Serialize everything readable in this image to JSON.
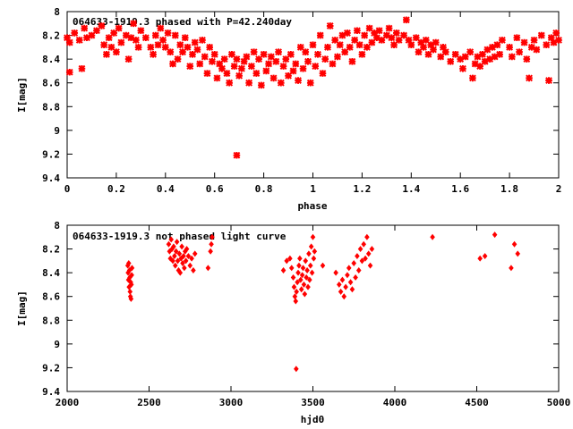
{
  "chart_data": [
    {
      "type": "scatter",
      "title": "064633-1919.3 phased with P=42.240day",
      "xlabel": "phase",
      "ylabel": "I[mag]",
      "xlim": [
        0,
        2
      ],
      "ylim": [
        9.4,
        8
      ],
      "y_inverted": true,
      "x_ticks": [
        0,
        0.2,
        0.4,
        0.6,
        0.8,
        1,
        1.2,
        1.4,
        1.6,
        1.8,
        2
      ],
      "y_ticks": [
        8,
        8.2,
        8.4,
        8.6,
        8.8,
        9,
        9.2,
        9.4
      ],
      "x_tick_labels": [
        "0",
        "0.2",
        "0.4",
        "0.6",
        "0.8",
        "1",
        "1.2",
        "1.4",
        "1.6",
        "1.8",
        "2"
      ],
      "y_tick_labels": [
        "8",
        "8.2",
        "8.4",
        "8.6",
        "8.8",
        "9",
        "9.2",
        "9.4"
      ],
      "marker_color": "#ff0000",
      "points": [
        [
          0.0,
          8.22
        ],
        [
          0.01,
          8.26
        ],
        [
          0.01,
          8.51
        ],
        [
          0.03,
          8.18
        ],
        [
          0.05,
          8.24
        ],
        [
          0.06,
          8.48
        ],
        [
          0.07,
          8.14
        ],
        [
          0.08,
          8.22
        ],
        [
          0.1,
          8.2
        ],
        [
          0.12,
          8.16
        ],
        [
          0.14,
          8.12
        ],
        [
          0.15,
          8.28
        ],
        [
          0.16,
          8.36
        ],
        [
          0.17,
          8.22
        ],
        [
          0.18,
          8.3
        ],
        [
          0.19,
          8.18
        ],
        [
          0.2,
          8.34
        ],
        [
          0.21,
          8.14
        ],
        [
          0.22,
          8.26
        ],
        [
          0.24,
          8.2
        ],
        [
          0.25,
          8.4
        ],
        [
          0.26,
          8.22
        ],
        [
          0.27,
          8.1
        ],
        [
          0.28,
          8.24
        ],
        [
          0.29,
          8.3
        ],
        [
          0.3,
          8.16
        ],
        [
          0.32,
          8.22
        ],
        [
          0.34,
          8.3
        ],
        [
          0.35,
          8.36
        ],
        [
          0.36,
          8.2
        ],
        [
          0.37,
          8.28
        ],
        [
          0.38,
          8.14
        ],
        [
          0.39,
          8.24
        ],
        [
          0.4,
          8.3
        ],
        [
          0.41,
          8.18
        ],
        [
          0.42,
          8.34
        ],
        [
          0.43,
          8.44
        ],
        [
          0.44,
          8.2
        ],
        [
          0.45,
          8.4
        ],
        [
          0.46,
          8.28
        ],
        [
          0.47,
          8.34
        ],
        [
          0.48,
          8.22
        ],
        [
          0.49,
          8.3
        ],
        [
          0.5,
          8.46
        ],
        [
          0.51,
          8.36
        ],
        [
          0.52,
          8.26
        ],
        [
          0.53,
          8.32
        ],
        [
          0.54,
          8.44
        ],
        [
          0.55,
          8.24
        ],
        [
          0.56,
          8.38
        ],
        [
          0.57,
          8.52
        ],
        [
          0.58,
          8.3
        ],
        [
          0.59,
          8.42
        ],
        [
          0.6,
          8.36
        ],
        [
          0.61,
          8.56
        ],
        [
          0.62,
          8.44
        ],
        [
          0.63,
          8.48
        ],
        [
          0.64,
          8.4
        ],
        [
          0.65,
          8.52
        ],
        [
          0.66,
          8.6
        ],
        [
          0.67,
          8.36
        ],
        [
          0.68,
          8.46
        ],
        [
          0.69,
          8.4
        ],
        [
          0.69,
          9.21
        ],
        [
          0.7,
          8.54
        ],
        [
          0.71,
          8.48
        ],
        [
          0.72,
          8.42
        ],
        [
          0.73,
          8.38
        ],
        [
          0.74,
          8.6
        ],
        [
          0.75,
          8.46
        ],
        [
          0.76,
          8.34
        ],
        [
          0.77,
          8.52
        ],
        [
          0.78,
          8.4
        ],
        [
          0.79,
          8.62
        ],
        [
          0.8,
          8.36
        ],
        [
          0.81,
          8.5
        ],
        [
          0.82,
          8.44
        ],
        [
          0.83,
          8.38
        ],
        [
          0.84,
          8.56
        ],
        [
          0.85,
          8.42
        ],
        [
          0.86,
          8.34
        ],
        [
          0.87,
          8.6
        ],
        [
          0.88,
          8.46
        ],
        [
          0.89,
          8.4
        ],
        [
          0.9,
          8.54
        ],
        [
          0.91,
          8.36
        ],
        [
          0.92,
          8.5
        ],
        [
          0.93,
          8.44
        ],
        [
          0.94,
          8.58
        ],
        [
          0.95,
          8.3
        ],
        [
          0.96,
          8.48
        ],
        [
          0.97,
          8.34
        ],
        [
          0.98,
          8.42
        ],
        [
          0.99,
          8.6
        ],
        [
          1.0,
          8.28
        ],
        [
          1.01,
          8.46
        ],
        [
          1.02,
          8.36
        ],
        [
          1.03,
          8.2
        ],
        [
          1.04,
          8.52
        ],
        [
          1.05,
          8.4
        ],
        [
          1.06,
          8.3
        ],
        [
          1.07,
          8.12
        ],
        [
          1.08,
          8.44
        ],
        [
          1.09,
          8.24
        ],
        [
          1.1,
          8.38
        ],
        [
          1.11,
          8.28
        ],
        [
          1.12,
          8.2
        ],
        [
          1.13,
          8.34
        ],
        [
          1.14,
          8.18
        ],
        [
          1.15,
          8.3
        ],
        [
          1.16,
          8.42
        ],
        [
          1.17,
          8.24
        ],
        [
          1.18,
          8.16
        ],
        [
          1.19,
          8.28
        ],
        [
          1.2,
          8.36
        ],
        [
          1.21,
          8.2
        ],
        [
          1.22,
          8.3
        ],
        [
          1.23,
          8.14
        ],
        [
          1.24,
          8.26
        ],
        [
          1.25,
          8.18
        ],
        [
          1.26,
          8.22
        ],
        [
          1.27,
          8.16
        ],
        [
          1.28,
          8.24
        ],
        [
          1.3,
          8.2
        ],
        [
          1.31,
          8.14
        ],
        [
          1.32,
          8.22
        ],
        [
          1.33,
          8.28
        ],
        [
          1.34,
          8.18
        ],
        [
          1.35,
          8.24
        ],
        [
          1.37,
          8.2
        ],
        [
          1.38,
          8.07
        ],
        [
          1.39,
          8.24
        ],
        [
          1.4,
          8.28
        ],
        [
          1.42,
          8.22
        ],
        [
          1.43,
          8.34
        ],
        [
          1.44,
          8.26
        ],
        [
          1.45,
          8.3
        ],
        [
          1.46,
          8.24
        ],
        [
          1.47,
          8.36
        ],
        [
          1.48,
          8.28
        ],
        [
          1.49,
          8.32
        ],
        [
          1.5,
          8.26
        ],
        [
          1.52,
          8.38
        ],
        [
          1.53,
          8.3
        ],
        [
          1.54,
          8.34
        ],
        [
          1.56,
          8.42
        ],
        [
          1.58,
          8.36
        ],
        [
          1.6,
          8.4
        ],
        [
          1.61,
          8.48
        ],
        [
          1.62,
          8.38
        ],
        [
          1.64,
          8.34
        ],
        [
          1.65,
          8.56
        ],
        [
          1.66,
          8.44
        ],
        [
          1.67,
          8.38
        ],
        [
          1.68,
          8.46
        ],
        [
          1.69,
          8.36
        ],
        [
          1.7,
          8.42
        ],
        [
          1.71,
          8.32
        ],
        [
          1.72,
          8.4
        ],
        [
          1.73,
          8.3
        ],
        [
          1.74,
          8.38
        ],
        [
          1.75,
          8.28
        ],
        [
          1.76,
          8.36
        ],
        [
          1.77,
          8.24
        ],
        [
          1.8,
          8.3
        ],
        [
          1.81,
          8.38
        ],
        [
          1.83,
          8.22
        ],
        [
          1.84,
          8.34
        ],
        [
          1.86,
          8.26
        ],
        [
          1.87,
          8.4
        ],
        [
          1.88,
          8.56
        ],
        [
          1.89,
          8.3
        ],
        [
          1.9,
          8.24
        ],
        [
          1.91,
          8.32
        ],
        [
          1.93,
          8.2
        ],
        [
          1.95,
          8.28
        ],
        [
          1.96,
          8.58
        ],
        [
          1.97,
          8.22
        ],
        [
          1.98,
          8.26
        ],
        [
          1.99,
          8.18
        ],
        [
          2.0,
          8.24
        ]
      ]
    },
    {
      "type": "scatter",
      "title": "064633-1919.3 not phased light curve",
      "xlabel": "hjd0",
      "ylabel": "I[mag]",
      "xlim": [
        2000,
        5000
      ],
      "ylim": [
        9.4,
        8
      ],
      "y_inverted": true,
      "x_ticks": [
        2000,
        2500,
        3000,
        3500,
        4000,
        4500,
        5000
      ],
      "y_ticks": [
        8,
        8.2,
        8.4,
        8.6,
        8.8,
        9,
        9.2,
        9.4
      ],
      "x_tick_labels": [
        "2000",
        "2500",
        "3000",
        "3500",
        "4000",
        "4500",
        "5000"
      ],
      "y_tick_labels": [
        "8",
        "8.2",
        "8.4",
        "8.6",
        "8.8",
        "9",
        "9.2",
        "9.4"
      ],
      "marker_color": "#ff0000",
      "points": [
        [
          2370,
          8.34
        ],
        [
          2372,
          8.4
        ],
        [
          2374,
          8.46
        ],
        [
          2376,
          8.32
        ],
        [
          2378,
          8.52
        ],
        [
          2380,
          8.38
        ],
        [
          2382,
          8.44
        ],
        [
          2384,
          8.56
        ],
        [
          2386,
          8.6
        ],
        [
          2388,
          8.48
        ],
        [
          2390,
          8.62
        ],
        [
          2392,
          8.5
        ],
        [
          2394,
          8.42
        ],
        [
          2396,
          8.36
        ],
        [
          2620,
          8.16
        ],
        [
          2625,
          8.22
        ],
        [
          2630,
          8.28
        ],
        [
          2635,
          8.12
        ],
        [
          2640,
          8.2
        ],
        [
          2645,
          8.3
        ],
        [
          2650,
          8.18
        ],
        [
          2655,
          8.26
        ],
        [
          2660,
          8.34
        ],
        [
          2665,
          8.22
        ],
        [
          2670,
          8.14
        ],
        [
          2675,
          8.3
        ],
        [
          2680,
          8.38
        ],
        [
          2685,
          8.24
        ],
        [
          2690,
          8.4
        ],
        [
          2695,
          8.28
        ],
        [
          2700,
          8.18
        ],
        [
          2705,
          8.32
        ],
        [
          2710,
          8.26
        ],
        [
          2715,
          8.36
        ],
        [
          2720,
          8.22
        ],
        [
          2725,
          8.3
        ],
        [
          2730,
          8.2
        ],
        [
          2740,
          8.26
        ],
        [
          2750,
          8.34
        ],
        [
          2760,
          8.28
        ],
        [
          2770,
          8.38
        ],
        [
          2780,
          8.24
        ],
        [
          2860,
          8.36
        ],
        [
          2875,
          8.22
        ],
        [
          2880,
          8.16
        ],
        [
          2885,
          8.1
        ],
        [
          3320,
          8.38
        ],
        [
          3340,
          8.3
        ],
        [
          3360,
          8.28
        ],
        [
          3370,
          8.36
        ],
        [
          3380,
          8.44
        ],
        [
          3385,
          8.52
        ],
        [
          3390,
          8.6
        ],
        [
          3395,
          8.64
        ],
        [
          3398,
          9.21
        ],
        [
          3400,
          8.56
        ],
        [
          3405,
          8.48
        ],
        [
          3410,
          8.4
        ],
        [
          3415,
          8.34
        ],
        [
          3420,
          8.28
        ],
        [
          3425,
          8.46
        ],
        [
          3430,
          8.54
        ],
        [
          3435,
          8.42
        ],
        [
          3440,
          8.36
        ],
        [
          3445,
          8.5
        ],
        [
          3450,
          8.58
        ],
        [
          3455,
          8.3
        ],
        [
          3460,
          8.44
        ],
        [
          3465,
          8.38
        ],
        [
          3470,
          8.52
        ],
        [
          3475,
          8.24
        ],
        [
          3480,
          8.46
        ],
        [
          3485,
          8.34
        ],
        [
          3490,
          8.18
        ],
        [
          3495,
          8.4
        ],
        [
          3500,
          8.1
        ],
        [
          3505,
          8.28
        ],
        [
          3510,
          8.22
        ],
        [
          3560,
          8.34
        ],
        [
          3640,
          8.4
        ],
        [
          3660,
          8.5
        ],
        [
          3670,
          8.56
        ],
        [
          3680,
          8.46
        ],
        [
          3690,
          8.6
        ],
        [
          3700,
          8.52
        ],
        [
          3710,
          8.42
        ],
        [
          3720,
          8.36
        ],
        [
          3730,
          8.48
        ],
        [
          3740,
          8.54
        ],
        [
          3750,
          8.32
        ],
        [
          3760,
          8.44
        ],
        [
          3770,
          8.26
        ],
        [
          3780,
          8.38
        ],
        [
          3790,
          8.2
        ],
        [
          3800,
          8.3
        ],
        [
          3810,
          8.16
        ],
        [
          3820,
          8.28
        ],
        [
          3830,
          8.1
        ],
        [
          3840,
          8.24
        ],
        [
          3850,
          8.34
        ],
        [
          3860,
          8.2
        ],
        [
          4230,
          8.1
        ],
        [
          4520,
          8.28
        ],
        [
          4550,
          8.26
        ],
        [
          4610,
          8.08
        ],
        [
          4710,
          8.36
        ],
        [
          4730,
          8.16
        ],
        [
          4750,
          8.24
        ]
      ]
    }
  ]
}
